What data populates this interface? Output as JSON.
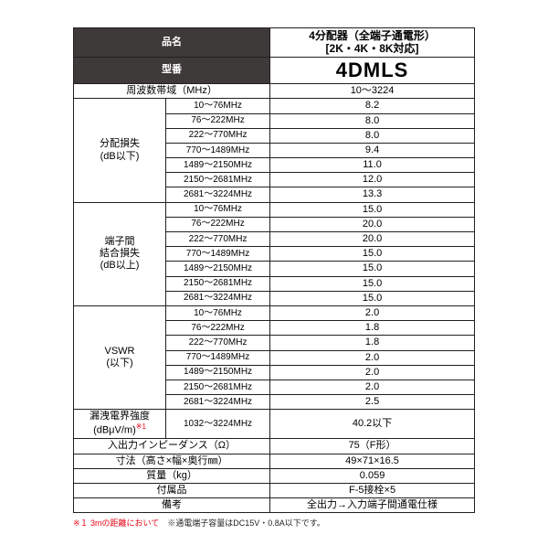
{
  "header": {
    "name_label": "品名",
    "product": "4分配器（全端子通電形）\n[2K・4K・8K対応]",
    "model_label": "型番",
    "model_value": "4DMLS"
  },
  "freq_range": {
    "label": "周波数帯域（MHz）",
    "value": "10～3224"
  },
  "bands": [
    "10～76MHz",
    "76～222MHz",
    "222～770MHz",
    "770～1489MHz",
    "1489～2150MHz",
    "2150～2681MHz",
    "2681～3224MHz"
  ],
  "groups": [
    {
      "label": "分配損失\n(dB以下)",
      "values": [
        "8.2",
        "8.0",
        "8.0",
        "9.4",
        "11.0",
        "12.0",
        "13.3"
      ]
    },
    {
      "label": "端子間\n結合損失\n(dB以上)",
      "values": [
        "15.0",
        "20.0",
        "20.0",
        "15.0",
        "15.0",
        "15.0",
        "15.0"
      ]
    },
    {
      "label": "VSWR\n(以下)",
      "values": [
        "2.0",
        "1.8",
        "1.8",
        "2.0",
        "2.0",
        "2.0",
        "2.5"
      ]
    }
  ],
  "leak": {
    "label_html": "漏洩電界強度\n(dBμV/m)",
    "sup": "※1",
    "band": "1032～3224MHz",
    "value": "40.2以下"
  },
  "rows_bottom": [
    {
      "label": "入出力インピーダンス（Ω）",
      "value": "75（F形）"
    },
    {
      "label": "寸法（高さ×幅×奥行㎜）",
      "value": "49×71×16.5"
    },
    {
      "label": "質量（kg）",
      "value": "0.059"
    },
    {
      "label": "付属品",
      "value": "F-5接栓×5"
    },
    {
      "label": "備考",
      "value": "全出力→入力端子間通電仕様"
    }
  ],
  "footnote": {
    "red": "※１ 3mの距離において",
    "black": "　※通電端子容量はDC15V・0.8A以下です。"
  }
}
